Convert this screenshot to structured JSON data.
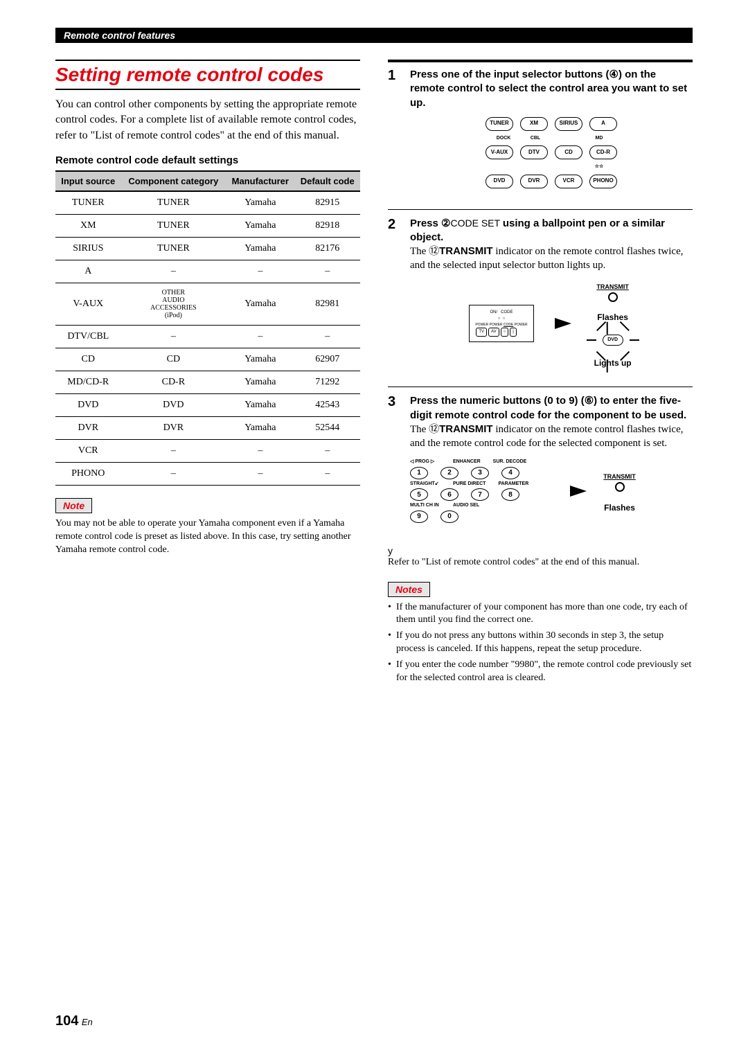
{
  "header_bar": "Remote control features",
  "title": "Setting remote control codes",
  "intro": "You can control other components by setting the appropriate remote control codes. For a complete list of available remote control codes, refer to \"List of remote control codes\" at the end of this manual.",
  "table_heading": "Remote control code default settings",
  "table": {
    "headers": [
      "Input source",
      "Component category",
      "Manufacturer",
      "Default code"
    ],
    "rows": [
      [
        "TUNER",
        "TUNER",
        "Yamaha",
        "82915"
      ],
      [
        "XM",
        "TUNER",
        "Yamaha",
        "82918"
      ],
      [
        "SIRIUS",
        "TUNER",
        "Yamaha",
        "82176"
      ],
      [
        "A",
        "–",
        "–",
        "–"
      ],
      [
        "V-AUX",
        "OTHER AUDIO ACCESSORIES (iPod)",
        "Yamaha",
        "82981"
      ],
      [
        "DTV/CBL",
        "–",
        "–",
        "–"
      ],
      [
        "CD",
        "CD",
        "Yamaha",
        "62907"
      ],
      [
        "MD/CD-R",
        "CD-R",
        "Yamaha",
        "71292"
      ],
      [
        "DVD",
        "DVD",
        "Yamaha",
        "42543"
      ],
      [
        "DVR",
        "DVR",
        "Yamaha",
        "52544"
      ],
      [
        "VCR",
        "–",
        "–",
        "–"
      ],
      [
        "PHONO",
        "–",
        "–",
        "–"
      ]
    ]
  },
  "note_label": "Note",
  "note_text": "You may not be able to operate your Yamaha component even if a Yamaha remote control code is preset as listed above. In this case, try setting another Yamaha remote control code.",
  "steps": {
    "s1": {
      "num": "1",
      "bold": "Press one of the input selector buttons (④) on the remote control to select the control area you want to set up.",
      "buttons_row1_labels": [
        "TUNER",
        "XM",
        "SIRIUS",
        "A"
      ],
      "buttons_row2_labels_top": [
        "DOCK",
        "CBL",
        "",
        "MD"
      ],
      "buttons_row2": [
        "V-AUX",
        "DTV",
        "CD",
        "CD-R"
      ],
      "buttons_row3_star": "☆☆",
      "buttons_row3": [
        "DVD",
        "DVR",
        "VCR",
        "PHONO"
      ]
    },
    "s2": {
      "num": "2",
      "bold_part1": "Press ②",
      "code_set": "CODE SET",
      "bold_part2": "using a ballpoint pen or a similar object.",
      "body_prefix": "The ⑫",
      "transmit_word": "TRANSMIT",
      "body_rest": " indicator on the remote control flashes twice, and the selected input selector button lights up.",
      "mini_labels": {
        "l1": "ON/",
        "l2": "CODE",
        "l3": "SET",
        "tv": "TV",
        "av": "AV",
        "pw": "POWER"
      },
      "transmit_label": "TRANSMIT",
      "flashes": "Flashes",
      "dvd_btn": "DVD",
      "lights_up": "Lights up"
    },
    "s3": {
      "num": "3",
      "bold": "Press the numeric buttons (0 to 9) (⑥) to enter the five-digit remote control code for the component to be used.",
      "body_prefix": "The ⑫",
      "transmit_word": "TRANSMIT",
      "body_rest": " indicator on the remote control flashes twice, and the remote control code for the selected component is set.",
      "row1_labels": [
        "◁    PROG   ▷",
        "ENHANCER",
        "SUR. DECODE"
      ],
      "row1_nums": [
        "1",
        "2",
        "3",
        "4"
      ],
      "row2_labels": [
        "STRAIGHT↙",
        "PURE DIRECT",
        "PARAMETER"
      ],
      "row2_nums": [
        "5",
        "6",
        "7",
        "8"
      ],
      "row3_labels": [
        "MULTI CH IN",
        "AUDIO SEL"
      ],
      "row3_nums": [
        "9",
        "0"
      ],
      "transmit_label": "TRANSMIT",
      "flashes": "Flashes"
    }
  },
  "tip_symbol": "y",
  "tip_text": "Refer to \"List of remote control codes\" at the end of this manual.",
  "notes_label": "Notes",
  "notes": [
    "If the manufacturer of your component has more than one code, try each of them until you find the correct one.",
    "If you do not press any buttons within 30 seconds in step 3, the setup process is canceled. If this happens, repeat the setup procedure.",
    "If you enter the code number \"9980\", the remote control code previously set for the selected control area is cleared."
  ],
  "page_num": "104",
  "page_lang": "En"
}
